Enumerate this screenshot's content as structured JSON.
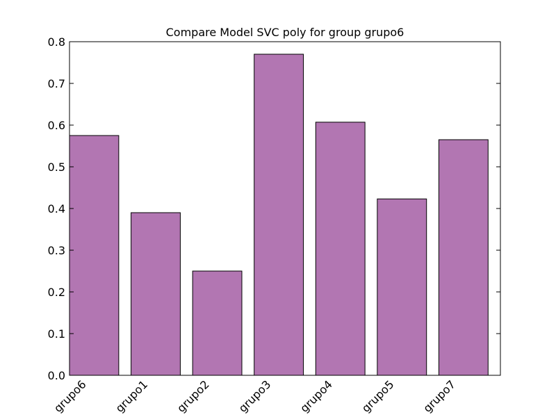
{
  "chart_data": {
    "type": "bar",
    "title": "Compare Model SVC poly for group grupo6",
    "xlabel": "",
    "ylabel": "",
    "categories": [
      "grupo6",
      "grupo1",
      "grupo2",
      "grupo3",
      "grupo4",
      "grupo5",
      "grupo7"
    ],
    "values": [
      0.575,
      0.39,
      0.25,
      0.77,
      0.607,
      0.423,
      0.565
    ],
    "ylim": [
      0,
      0.8
    ],
    "yticks": [
      0.0,
      0.1,
      0.2,
      0.3,
      0.4,
      0.5,
      0.6,
      0.7,
      0.8
    ],
    "ytick_labels": [
      "0.0",
      "0.1",
      "0.2",
      "0.3",
      "0.4",
      "0.5",
      "0.6",
      "0.7",
      "0.8"
    ],
    "bar_color": "#b276b2",
    "grid": false,
    "legend": "none"
  }
}
